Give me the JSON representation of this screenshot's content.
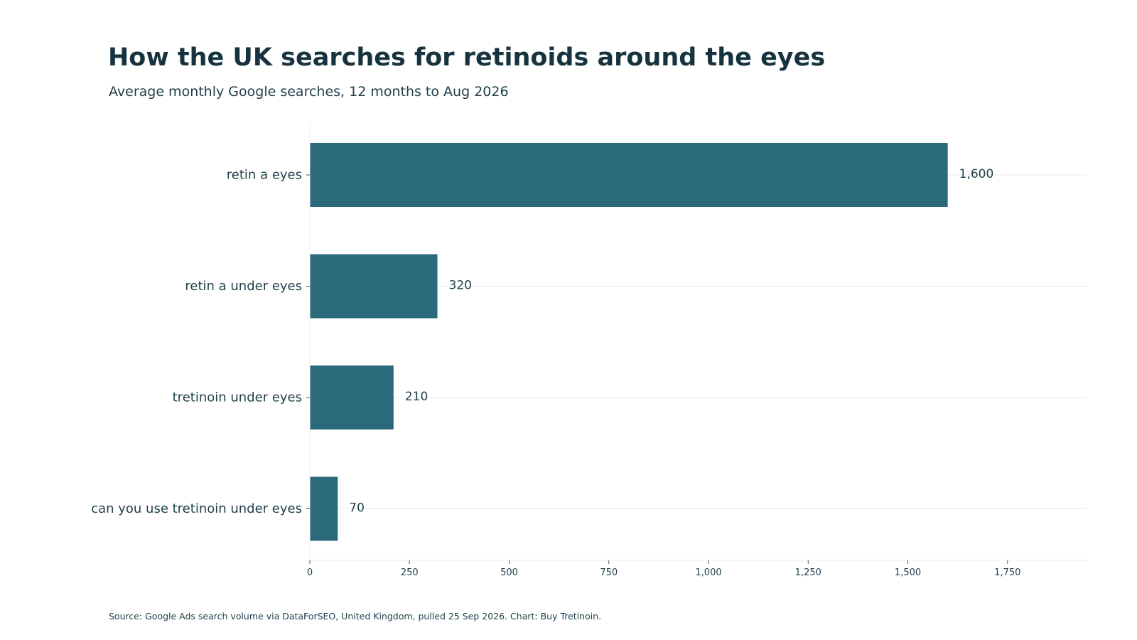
{
  "header": {
    "title": "How the UK searches for retinoids around the eyes",
    "subtitle": "Average monthly Google searches, 12 months to Aug 2026"
  },
  "footer": {
    "source": "Source: Google Ads search volume via DataForSEO, United Kingdom, pulled 25 Sep 2026. Chart: Buy Tretinoin."
  },
  "colors": {
    "bar": "#2b6a7b",
    "text": "#17333f",
    "grid": "#e8e8e8",
    "axis": "#cccccc"
  },
  "chart_data": {
    "type": "bar",
    "orientation": "horizontal",
    "title": "How the UK searches for retinoids around the eyes",
    "subtitle": "Average monthly Google searches, 12 months to Aug 2026",
    "xlabel": "",
    "ylabel": "",
    "categories": [
      "retin a eyes",
      "retin a under eyes",
      "tretinoin under eyes",
      "can you use tretinoin under eyes"
    ],
    "values": [
      1600,
      320,
      210,
      70
    ],
    "value_labels": [
      "1,600",
      "320",
      "210",
      "70"
    ],
    "xlim": [
      0,
      1950
    ],
    "xticks": [
      0,
      250,
      500,
      750,
      1000,
      1250,
      1500,
      1750
    ],
    "xtick_labels": [
      "0",
      "250",
      "500",
      "750",
      "1,000",
      "1,250",
      "1,500",
      "1,750"
    ],
    "grid": "horizontal lines at categories"
  }
}
